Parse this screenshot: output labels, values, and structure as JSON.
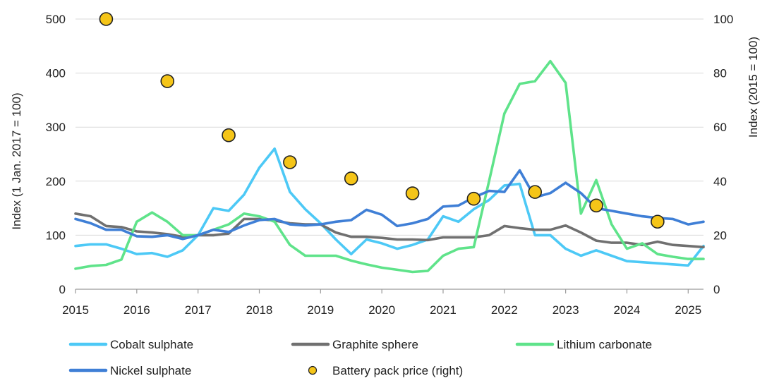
{
  "chart_data": {
    "type": "line",
    "title": "",
    "xlabel": "",
    "ylabel_left": "Index (1 Jan. 2017 = 100)",
    "ylabel_right": "Index (2015 = 100)",
    "xlim": [
      2015,
      2025.25
    ],
    "ylim_left": [
      0,
      500
    ],
    "ylim_right": [
      0,
      100
    ],
    "x_ticks": [
      "2015",
      "2016",
      "2017",
      "2018",
      "2019",
      "2020",
      "2021",
      "2022",
      "2023",
      "2024",
      "2025"
    ],
    "y_ticks_left": [
      "0",
      "100",
      "200",
      "300",
      "400",
      "500"
    ],
    "y_ticks_right": [
      "0",
      "20",
      "40",
      "60",
      "80",
      "100"
    ],
    "grid": "horizontal",
    "legend_position": "bottom",
    "x": [
      2015.0,
      2015.25,
      2015.5,
      2015.75,
      2016.0,
      2016.25,
      2016.5,
      2016.75,
      2017.0,
      2017.25,
      2017.5,
      2017.75,
      2018.0,
      2018.25,
      2018.5,
      2018.75,
      2019.0,
      2019.25,
      2019.5,
      2019.75,
      2020.0,
      2020.25,
      2020.5,
      2020.75,
      2021.0,
      2021.25,
      2021.5,
      2021.75,
      2022.0,
      2022.25,
      2022.5,
      2022.75,
      2023.0,
      2023.25,
      2023.5,
      2023.75,
      2024.0,
      2024.25,
      2024.5,
      2024.75,
      2025.0,
      2025.25
    ],
    "series": [
      {
        "name": "Cobalt sulphate",
        "axis": "left",
        "color": "#4dc9f6",
        "values": [
          80,
          83,
          83,
          75,
          65,
          67,
          60,
          72,
          100,
          150,
          145,
          175,
          225,
          260,
          180,
          148,
          122,
          92,
          65,
          92,
          85,
          75,
          82,
          92,
          135,
          125,
          148,
          165,
          192,
          195,
          100,
          100,
          75,
          62,
          72,
          62,
          52,
          50,
          48,
          46,
          44,
          80
        ]
      },
      {
        "name": "Graphite sphere",
        "axis": "left",
        "color": "#707070",
        "values": [
          140,
          135,
          117,
          115,
          107,
          105,
          102,
          97,
          100,
          100,
          103,
          130,
          130,
          127,
          122,
          120,
          120,
          105,
          97,
          97,
          95,
          92,
          92,
          91,
          96,
          96,
          96,
          100,
          117,
          113,
          110,
          110,
          118,
          105,
          90,
          86,
          86,
          82,
          88,
          82,
          80,
          78
        ]
      },
      {
        "name": "Lithium carbonate",
        "axis": "left",
        "color": "#5fe38a",
        "values": [
          38,
          43,
          45,
          55,
          125,
          142,
          125,
          100,
          100,
          110,
          120,
          140,
          135,
          125,
          82,
          62,
          62,
          62,
          53,
          46,
          40,
          36,
          32,
          34,
          62,
          75,
          78,
          200,
          325,
          380,
          385,
          422,
          382,
          140,
          202,
          120,
          75,
          85,
          65,
          60,
          56,
          56
        ]
      },
      {
        "name": "Nickel sulphate",
        "axis": "left",
        "color": "#3f7fd6",
        "values": [
          130,
          122,
          110,
          110,
          98,
          97,
          100,
          93,
          100,
          110,
          106,
          118,
          128,
          130,
          120,
          118,
          120,
          125,
          128,
          147,
          138,
          117,
          122,
          130,
          153,
          155,
          170,
          182,
          180,
          220,
          170,
          178,
          197,
          178,
          150,
          145,
          140,
          135,
          132,
          130,
          120,
          125
        ]
      }
    ],
    "scatter_series": {
      "name": "Battery pack price (right)",
      "axis": "right",
      "color": "#f5c518",
      "x": [
        2015.5,
        2016.5,
        2017.5,
        2018.5,
        2019.5,
        2020.5,
        2021.5,
        2022.5,
        2023.5,
        2024.5
      ],
      "values": [
        100,
        77,
        57,
        47,
        41,
        35.5,
        33.5,
        36,
        31,
        25
      ]
    }
  }
}
